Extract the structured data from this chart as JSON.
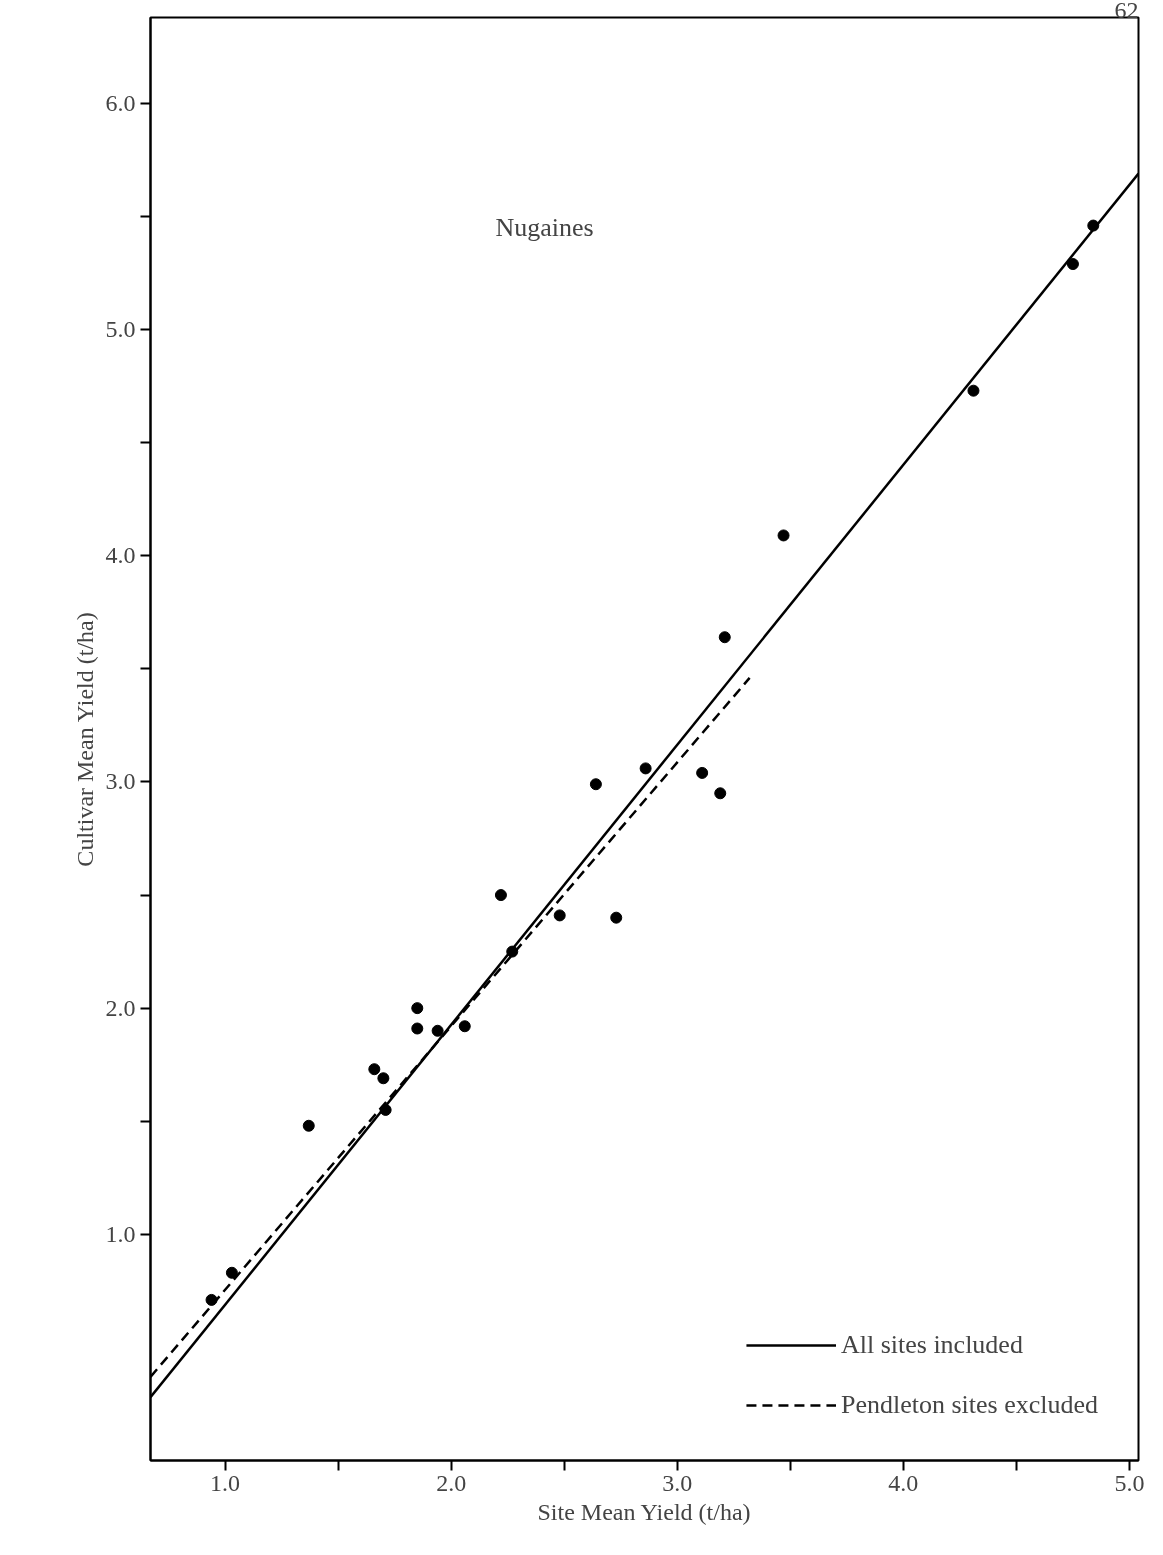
{
  "chart_data": {
    "type": "scatter",
    "xlabel": "Site Mean Yield (t/ha)",
    "ylabel": "Cultivar Mean Yield (t/ha)",
    "annotations": [
      "Nugaines",
      "62"
    ],
    "xlim": [
      0.67,
      5.04
    ],
    "ylim": [
      0,
      6.38
    ],
    "xticks": [
      {
        "value": 1.0,
        "label": "1.0"
      },
      {
        "value": 1.5,
        "label": null
      },
      {
        "value": 2.0,
        "label": "2.0"
      },
      {
        "value": 2.5,
        "label": null
      },
      {
        "value": 3.0,
        "label": "3.0"
      },
      {
        "value": 3.5,
        "label": null
      },
      {
        "value": 4.0,
        "label": "4.0"
      },
      {
        "value": 4.5,
        "label": null
      },
      {
        "value": 5.0,
        "label": "5.0"
      }
    ],
    "yticks": [
      {
        "value": 1.0,
        "label": "1.0"
      },
      {
        "value": 1.5,
        "label": null
      },
      {
        "value": 2.0,
        "label": "2.0"
      },
      {
        "value": 2.5,
        "label": null
      },
      {
        "value": 3.0,
        "label": "3.0"
      },
      {
        "value": 3.5,
        "label": null
      },
      {
        "value": 4.0,
        "label": "4.0"
      },
      {
        "value": 4.5,
        "label": null
      },
      {
        "value": 5.0,
        "label": "5.0"
      },
      {
        "value": 5.5,
        "label": null
      },
      {
        "value": 6.0,
        "label": "6.0"
      }
    ],
    "grid": false,
    "legend": "bottom right",
    "series": [
      {
        "marker": "circle",
        "color": "#000000",
        "x": [
          0.94,
          1.03,
          1.37,
          1.66,
          1.7,
          1.71,
          1.85,
          1.85,
          1.94,
          2.06,
          2.22,
          2.27,
          2.48,
          2.64,
          2.73,
          2.86,
          3.11,
          3.19,
          3.21,
          3.47,
          4.31,
          4.75,
          4.84
        ],
        "values": [
          0.71,
          0.83,
          1.48,
          1.73,
          1.69,
          1.55,
          2.0,
          1.91,
          1.9,
          1.92,
          2.5,
          2.25,
          2.41,
          2.99,
          2.4,
          3.06,
          3.04,
          2.95,
          3.64,
          4.09,
          4.73,
          5.29,
          5.46
        ]
      },
      {
        "type": "line",
        "name": "All sites included",
        "line_style": "solid",
        "color": "#000000",
        "x": [
          0.67,
          5.04
        ],
        "values": [
          0.28,
          5.69
        ]
      },
      {
        "type": "line",
        "name": "Pendleton sites excluded",
        "line_style": "dashed",
        "color": "#000000",
        "x": [
          0.67,
          3.32
        ],
        "values": [
          0.37,
          3.46
        ]
      }
    ]
  }
}
